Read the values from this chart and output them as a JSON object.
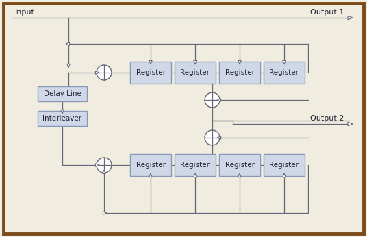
{
  "bg_color": "#f0ece0",
  "border_color": "#7a4a18",
  "line_color": "#666677",
  "box_fill": "#d0d8e8",
  "box_edge": "#8898b8",
  "text_color": "#222233",
  "output1_label": "Output 1",
  "output2_label": "Output 2",
  "input_label": "Input",
  "delay_label": "Delay Line",
  "interleaver_label": "Interleaver",
  "register_label": "Register"
}
